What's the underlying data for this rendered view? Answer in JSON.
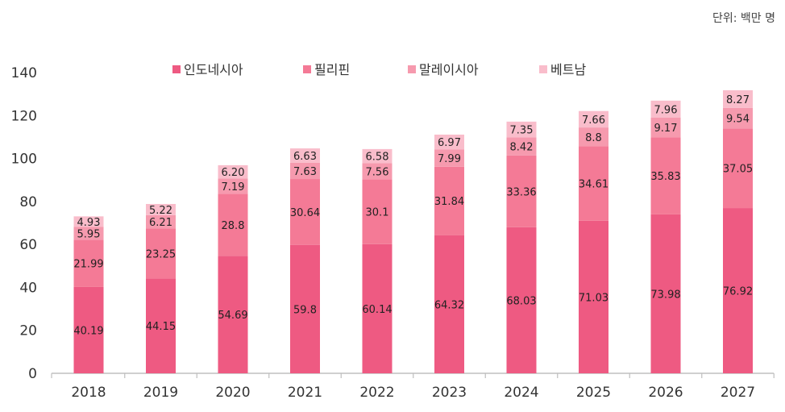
{
  "unit_note": "단위: 백만 명",
  "chart_data": {
    "type": "bar",
    "stacked": true,
    "categories": [
      "2018",
      "2019",
      "2020",
      "2021",
      "2022",
      "2023",
      "2024",
      "2025",
      "2026",
      "2027"
    ],
    "series": [
      {
        "name": "인도네시아",
        "color": "#EE5A82",
        "values": [
          40.19,
          44.15,
          54.69,
          59.8,
          60.14,
          64.32,
          68.03,
          71.03,
          73.98,
          76.92
        ],
        "labels": [
          "40.19",
          "44.15",
          "54.69",
          "59.8",
          "60.14",
          "64.32",
          "68.03",
          "71.03",
          "73.98",
          "76.92"
        ]
      },
      {
        "name": "필리핀",
        "color": "#F47A96",
        "values": [
          21.99,
          23.25,
          28.8,
          30.64,
          30.1,
          31.84,
          33.36,
          34.61,
          35.83,
          37.05
        ],
        "labels": [
          "21.99",
          "23.25",
          "28.8",
          "30.64",
          "30.1",
          "31.84",
          "33.36",
          "34.61",
          "35.83",
          "37.05"
        ]
      },
      {
        "name": "말레이시아",
        "color": "#F69AAE",
        "values": [
          5.95,
          6.21,
          7.19,
          7.63,
          7.56,
          7.99,
          8.42,
          8.8,
          9.17,
          9.54
        ],
        "labels": [
          "5.95",
          "6.21",
          "7.19",
          "7.63",
          "7.56",
          "7.99",
          "8.42",
          "8.8",
          "9.17",
          "9.54"
        ]
      },
      {
        "name": "베트남",
        "color": "#F9BDCB",
        "values": [
          4.93,
          5.22,
          6.2,
          6.63,
          6.58,
          6.97,
          7.35,
          7.66,
          7.96,
          8.27
        ],
        "labels": [
          "4.93",
          "5.22",
          "6.20",
          "6.63",
          "6.58",
          "6.97",
          "7.35",
          "7.66",
          "7.96",
          "8.27"
        ]
      }
    ],
    "ylim": [
      0,
      140
    ],
    "yticks": [
      "0",
      "20",
      "40",
      "60",
      "80",
      "100",
      "120",
      "140"
    ],
    "grid": false,
    "legend": "top-center"
  }
}
